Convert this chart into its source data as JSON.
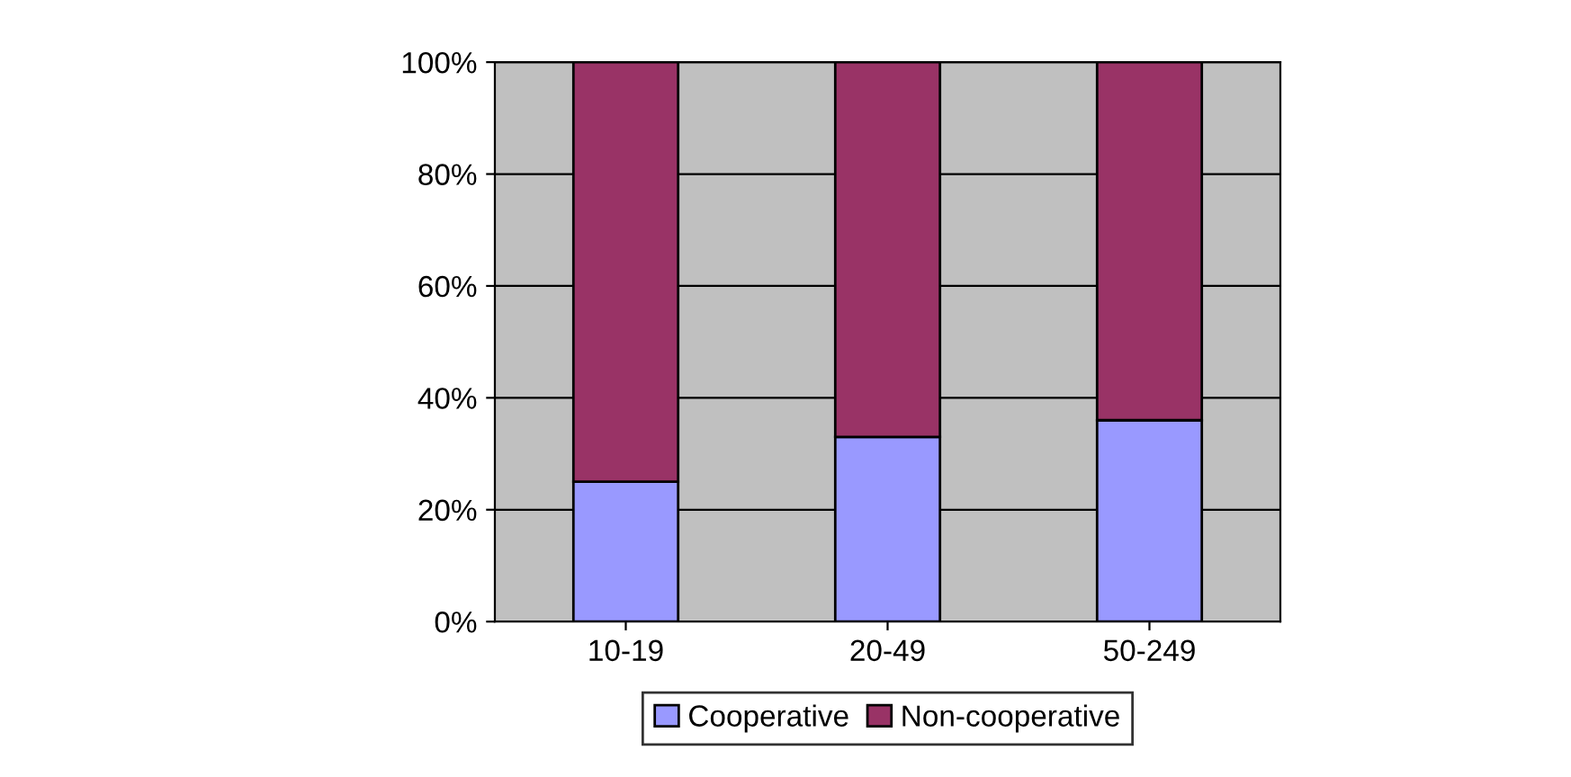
{
  "chart_data": {
    "type": "bar",
    "stacked": true,
    "categories": [
      "10-19",
      "20-49",
      "50-249"
    ],
    "series": [
      {
        "name": "Cooperative",
        "color": "#9999ff",
        "values": [
          25,
          33,
          36
        ]
      },
      {
        "name": "Non-cooperative",
        "color": "#993366",
        "values": [
          75,
          67,
          64
        ]
      }
    ],
    "ylim": [
      0,
      100
    ],
    "yticks": [
      {
        "value": 0,
        "label": "0%"
      },
      {
        "value": 20,
        "label": "20%"
      },
      {
        "value": 40,
        "label": "40%"
      },
      {
        "value": 60,
        "label": "60%"
      },
      {
        "value": 80,
        "label": "80%"
      },
      {
        "value": 100,
        "label": "100%"
      }
    ],
    "grid": "y",
    "legend": "bottom"
  }
}
